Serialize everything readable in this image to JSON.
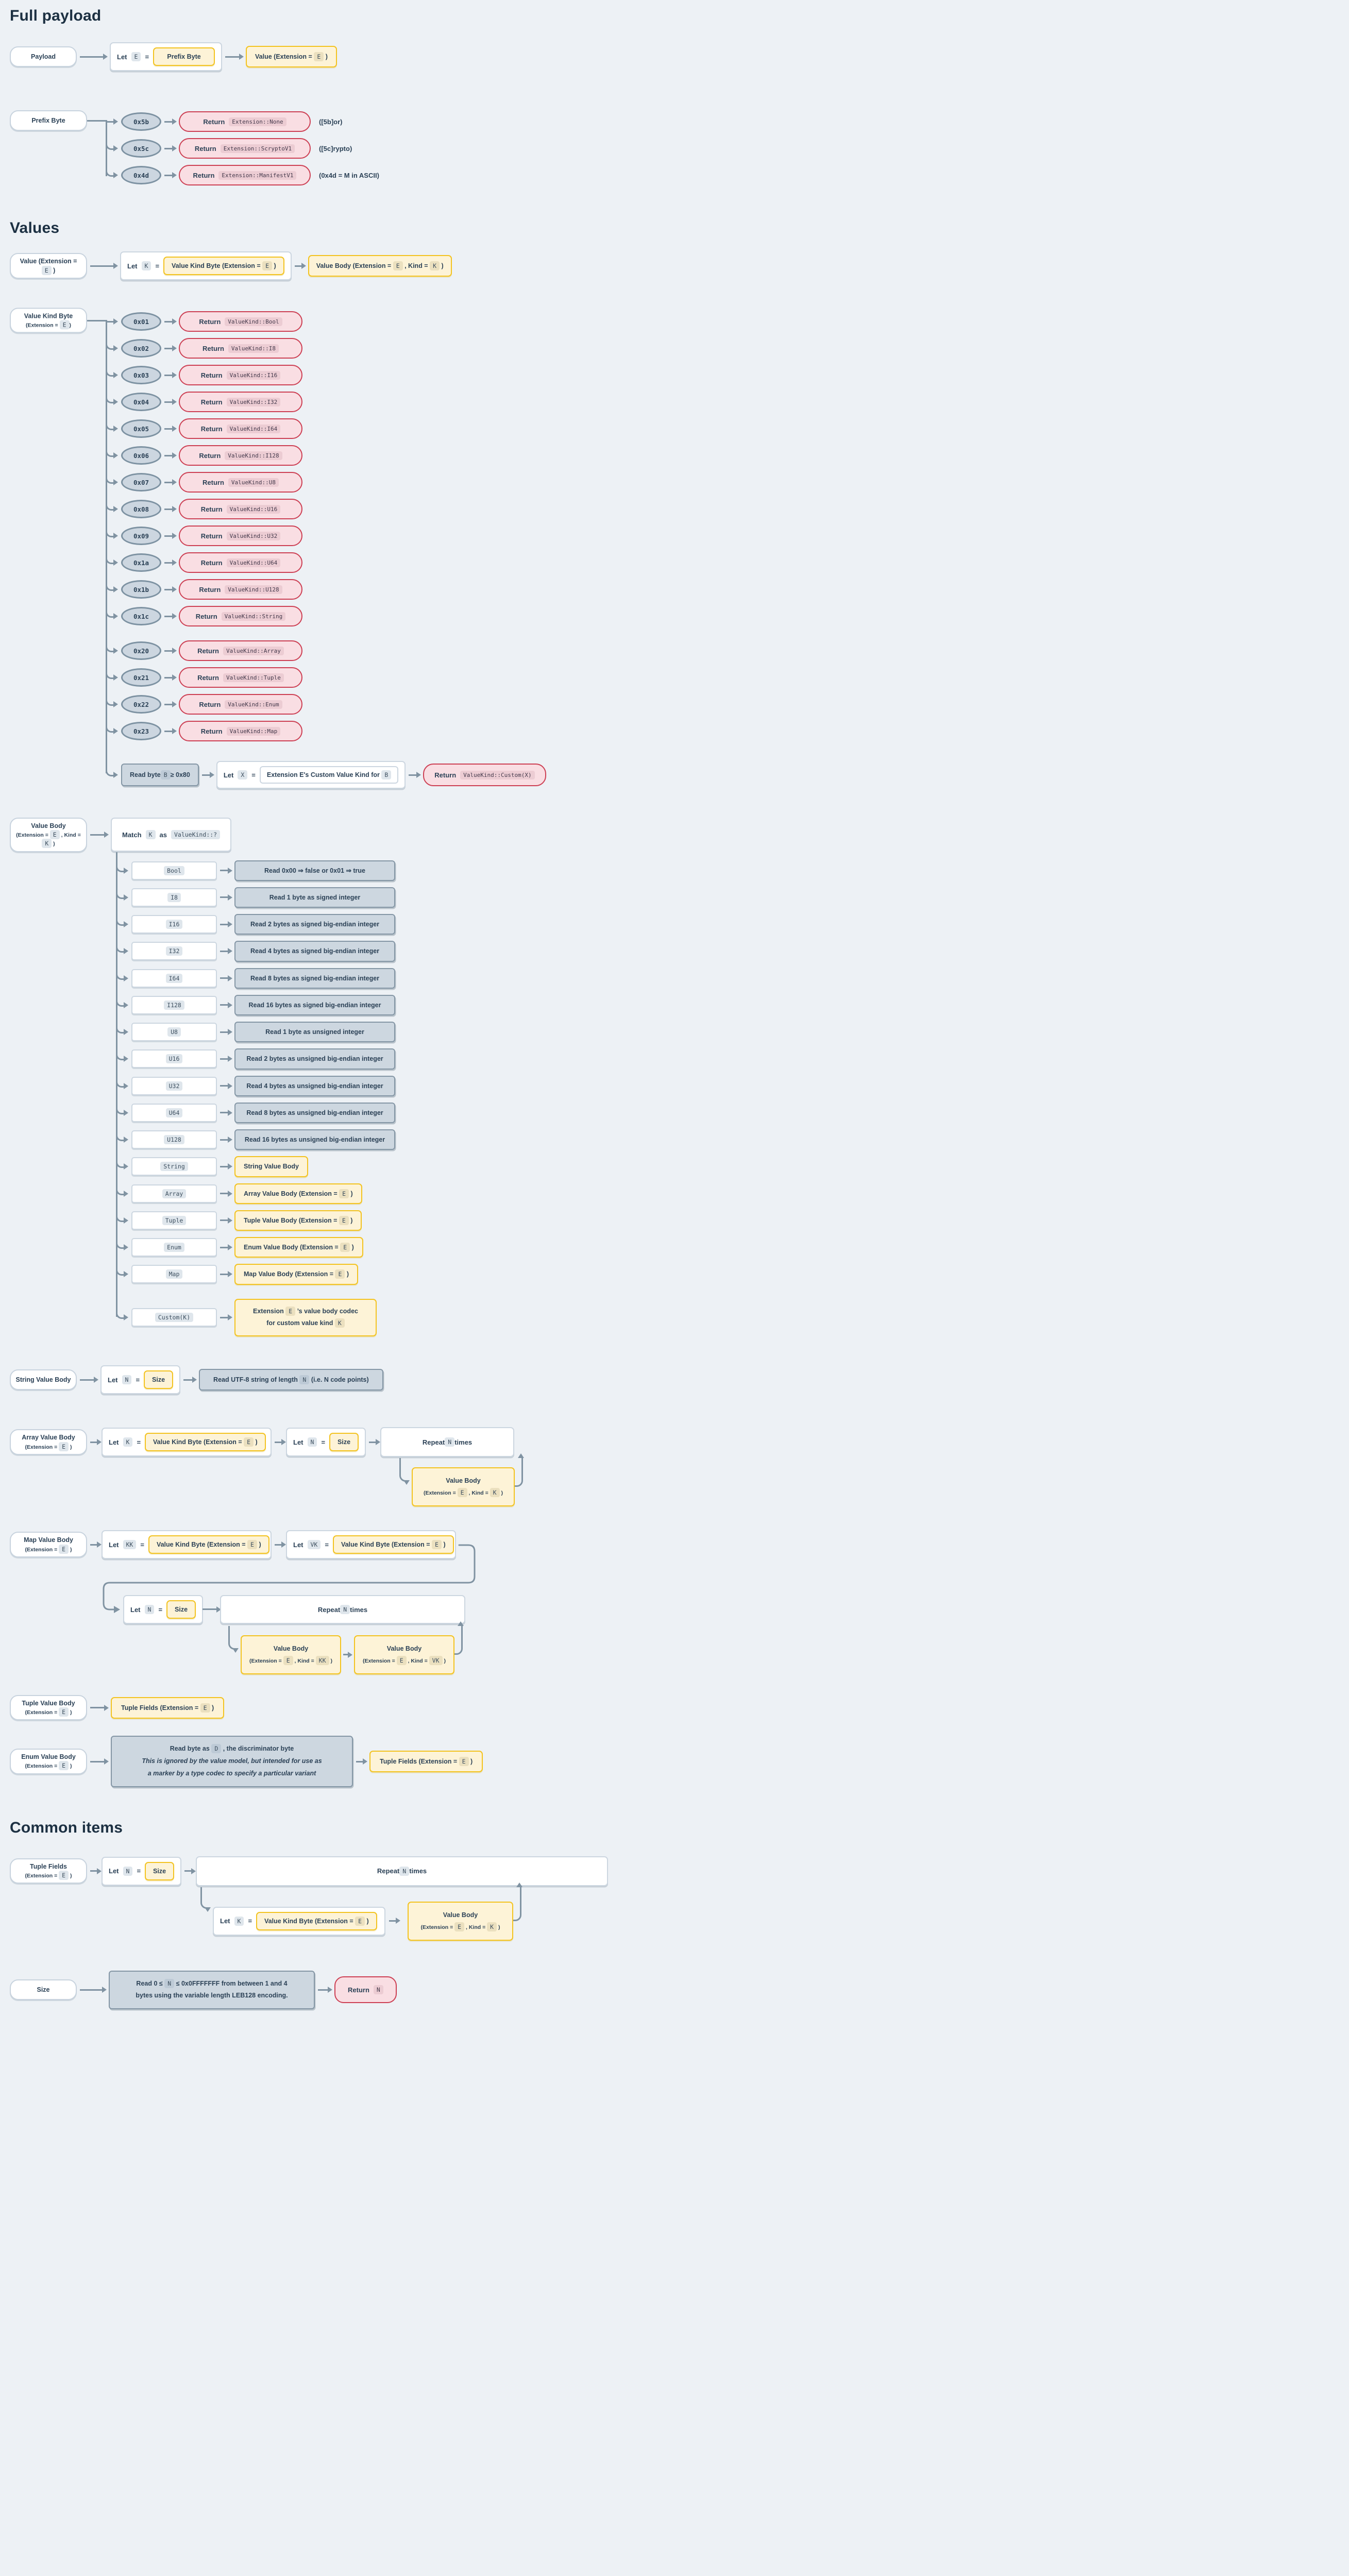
{
  "colors": {
    "background": "#edf1f5",
    "heading": "#1c3042",
    "text": "#2b4156",
    "line": "#8093a2",
    "yellow_border": "#f3c320",
    "yellow_fill": "#fdf3d7",
    "pink_border": "#cd4054",
    "pink_fill": "#f9dee3",
    "gray_box_fill": "#cdd7e0",
    "chip_gray": "#dfe6ec",
    "chip_tan": "#ebe0bf",
    "chip_pink": "#ecccd3",
    "node_border": "#c8d3de"
  },
  "headings": {
    "full_payload": "Full payload",
    "values": "Values",
    "common_items": "Common items"
  },
  "full_payload": {
    "pill": "Payload",
    "let_label": "Let",
    "let_var": "E",
    "eq": "=",
    "prefix_byte_box": "Prefix Byte",
    "value_box": [
      {
        "t": "Value (Extension = "
      },
      {
        "v": "E"
      },
      {
        "t": " )"
      }
    ]
  },
  "prefix_byte": {
    "pill": "Prefix Byte",
    "branches": [
      {
        "byte": "0x5b",
        "result": [
          {
            "t": "Return "
          },
          {
            "k": "Extension::None"
          }
        ],
        "note": "([5b]or)"
      },
      {
        "byte": "0x5c",
        "result": [
          {
            "t": "Return "
          },
          {
            "k": "Extension::ScryptoV1"
          }
        ],
        "note": "([5c]rypto)"
      },
      {
        "byte": "0x4d",
        "result": [
          {
            "t": "Return "
          },
          {
            "k": "Extension::ManifestV1"
          }
        ],
        "note": "(0x4d = M in ASCII)"
      }
    ]
  },
  "value": {
    "pill": [
      {
        "t": "Value (Extension = "
      },
      {
        "v": "E"
      },
      {
        "t": " )"
      }
    ],
    "let_label": "Let",
    "let_var": "K",
    "eq": "=",
    "kind_byte_box": [
      {
        "t": "Value Kind Byte (Extension = "
      },
      {
        "v": "E"
      },
      {
        "t": " )"
      }
    ],
    "body_box": [
      {
        "t": "Value Body (Extension = "
      },
      {
        "v": "E"
      },
      {
        "t": " , Kind = "
      },
      {
        "v": "K"
      },
      {
        "t": " )"
      }
    ]
  },
  "value_kind_byte": {
    "pill_line1": "Value Kind Byte",
    "pill_line2": [
      {
        "t": "(Extension = "
      },
      {
        "v": "E"
      },
      {
        "t": ")"
      }
    ],
    "branches": [
      {
        "byte": "0x01",
        "result": [
          {
            "t": "Return "
          },
          {
            "k": "ValueKind::Bool"
          }
        ]
      },
      {
        "byte": "0x02",
        "result": [
          {
            "t": "Return "
          },
          {
            "k": "ValueKind::I8"
          }
        ]
      },
      {
        "byte": "0x03",
        "result": [
          {
            "t": "Return "
          },
          {
            "k": "ValueKind::I16"
          }
        ]
      },
      {
        "byte": "0x04",
        "result": [
          {
            "t": "Return "
          },
          {
            "k": "ValueKind::I32"
          }
        ]
      },
      {
        "byte": "0x05",
        "result": [
          {
            "t": "Return "
          },
          {
            "k": "ValueKind::I64"
          }
        ]
      },
      {
        "byte": "0x06",
        "result": [
          {
            "t": "Return "
          },
          {
            "k": "ValueKind::I128"
          }
        ]
      },
      {
        "byte": "0x07",
        "result": [
          {
            "t": "Return "
          },
          {
            "k": "ValueKind::U8"
          }
        ]
      },
      {
        "byte": "0x08",
        "result": [
          {
            "t": "Return "
          },
          {
            "k": "ValueKind::U16"
          }
        ]
      },
      {
        "byte": "0x09",
        "result": [
          {
            "t": "Return "
          },
          {
            "k": "ValueKind::U32"
          }
        ]
      },
      {
        "byte": "0x1a",
        "result": [
          {
            "t": "Return "
          },
          {
            "k": "ValueKind::U64"
          }
        ]
      },
      {
        "byte": "0x1b",
        "result": [
          {
            "t": "Return "
          },
          {
            "k": "ValueKind::U128"
          }
        ]
      },
      {
        "byte": "0x1c",
        "result": [
          {
            "t": "Return "
          },
          {
            "k": "ValueKind::String"
          }
        ]
      },
      {
        "byte": "0x20",
        "gap": true,
        "result": [
          {
            "t": "Return "
          },
          {
            "k": "ValueKind::Array"
          }
        ]
      },
      {
        "byte": "0x21",
        "result": [
          {
            "t": "Return "
          },
          {
            "k": "ValueKind::Tuple"
          }
        ]
      },
      {
        "byte": "0x22",
        "result": [
          {
            "t": "Return "
          },
          {
            "k": "ValueKind::Enum"
          }
        ]
      },
      {
        "byte": "0x23",
        "result": [
          {
            "t": "Return "
          },
          {
            "k": "ValueKind::Map"
          }
        ]
      }
    ],
    "custom": {
      "read_box": [
        {
          "t": "Read byte "
        },
        {
          "v": "B"
        },
        {
          "t": " ≥ 0x80"
        }
      ],
      "let_label": "Let",
      "let_var": "X",
      "eq": "=",
      "inner_box": [
        {
          "t": "Extension E's Custom Value Kind for "
        },
        {
          "v": "B"
        }
      ],
      "result": [
        {
          "t": "Return "
        },
        {
          "k": "ValueKind::Custom(X)"
        }
      ]
    }
  },
  "value_body": {
    "pill_line1": "Value Body",
    "pill_line2": [
      {
        "t": "(Extension = "
      },
      {
        "v": "E"
      },
      {
        "t": " , Kind = "
      },
      {
        "v": "K"
      },
      {
        "t": " )"
      }
    ],
    "match_box": [
      {
        "t": "Match "
      },
      {
        "v": "K"
      },
      {
        "t": " as "
      },
      {
        "k": "ValueKind::?"
      }
    ],
    "branches": [
      {
        "label": "Bool",
        "type": "gray",
        "result": [
          {
            "t": "Read 0x00 ⇒ false or 0x01 ⇒ true"
          }
        ]
      },
      {
        "label": "I8",
        "type": "gray",
        "result": [
          {
            "t": "Read 1 byte as signed integer"
          }
        ]
      },
      {
        "label": "I16",
        "type": "gray",
        "result": [
          {
            "t": "Read 2 bytes as signed big-endian integer"
          }
        ]
      },
      {
        "label": "I32",
        "type": "gray",
        "result": [
          {
            "t": "Read 4 bytes as signed big-endian integer"
          }
        ]
      },
      {
        "label": "I64",
        "type": "gray",
        "result": [
          {
            "t": "Read 8 bytes as signed big-endian integer"
          }
        ]
      },
      {
        "label": "I128",
        "type": "gray",
        "result": [
          {
            "t": "Read 16 bytes as signed big-endian integer"
          }
        ]
      },
      {
        "label": "U8",
        "type": "gray",
        "result": [
          {
            "t": "Read 1 byte as unsigned integer"
          }
        ]
      },
      {
        "label": "U16",
        "type": "gray",
        "result": [
          {
            "t": "Read 2 bytes as unsigned big-endian integer"
          }
        ]
      },
      {
        "label": "U32",
        "type": "gray",
        "result": [
          {
            "t": "Read 4 bytes as unsigned big-endian integer"
          }
        ]
      },
      {
        "label": "U64",
        "type": "gray",
        "result": [
          {
            "t": "Read 8 bytes as unsigned big-endian integer"
          }
        ]
      },
      {
        "label": "U128",
        "type": "gray",
        "result": [
          {
            "t": "Read 16 bytes as unsigned big-endian integer"
          }
        ]
      },
      {
        "label": "String",
        "type": "yellow",
        "result": [
          {
            "t": "String Value Body"
          }
        ]
      },
      {
        "label": "Array",
        "type": "yellow",
        "result": [
          {
            "t": "Array Value Body (Extension = "
          },
          {
            "v": "E"
          },
          {
            "t": " )"
          }
        ]
      },
      {
        "label": "Tuple",
        "type": "yellow",
        "result": [
          {
            "t": "Tuple Value Body (Extension = "
          },
          {
            "v": "E"
          },
          {
            "t": " )"
          }
        ]
      },
      {
        "label": "Enum",
        "type": "yellow",
        "result": [
          {
            "t": "Enum Value Body (Extension = "
          },
          {
            "v": "E"
          },
          {
            "t": " )"
          }
        ]
      },
      {
        "label": "Map",
        "type": "yellow",
        "result": [
          {
            "t": "Map Value Body (Extension = "
          },
          {
            "v": "E"
          },
          {
            "t": " )"
          }
        ]
      },
      {
        "label": "Custom(K)",
        "type": "yellow2",
        "gap": true,
        "result": [
          {
            "t": "Extension "
          },
          {
            "v": "E"
          },
          {
            "t": " ’s value body codec"
          },
          {
            "br": true
          },
          {
            "t": "for custom value kind "
          },
          {
            "v": "K"
          }
        ]
      }
    ]
  },
  "string_value_body": {
    "pill": "String Value Body",
    "let_label": "Let",
    "let_var": "N",
    "eq": "=",
    "size_box": "Size",
    "read_box": [
      {
        "t": "Read UTF-8 string of length "
      },
      {
        "v": "N"
      },
      {
        "t": " (i.e. N code points)"
      }
    ]
  },
  "array_value_body": {
    "pill_line1": "Array Value Body",
    "pill_line2": [
      {
        "t": "(Extension = "
      },
      {
        "v": "E"
      },
      {
        "t": " )"
      }
    ],
    "let_label": "Let",
    "eq": "=",
    "let_k": "K",
    "let_n": "N",
    "kind_byte_box": [
      {
        "t": "Value Kind Byte (Extension = "
      },
      {
        "v": "E"
      },
      {
        "t": " )"
      }
    ],
    "size_box": "Size",
    "repeat_box": [
      {
        "t": "Repeat "
      },
      {
        "v": "N"
      },
      {
        "t": " times"
      }
    ],
    "loop_line1": "Value Body",
    "loop_line2": [
      {
        "t": "(Extension = "
      },
      {
        "v": "E"
      },
      {
        "t": " , Kind = "
      },
      {
        "v": "K"
      },
      {
        "t": " )"
      }
    ]
  },
  "map_value_body": {
    "pill_line1": "Map Value Body",
    "pill_line2": [
      {
        "t": "(Extension = "
      },
      {
        "v": "E"
      },
      {
        "t": " )"
      }
    ],
    "let_label": "Let",
    "eq": "=",
    "let_kk": "KK",
    "let_vk": "VK",
    "let_n": "N",
    "kind_byte_box": [
      {
        "t": "Value Kind Byte (Extension = "
      },
      {
        "v": "E"
      },
      {
        "t": " )"
      }
    ],
    "size_box": "Size",
    "repeat_box": [
      {
        "t": "Repeat "
      },
      {
        "v": "N"
      },
      {
        "t": " times"
      }
    ],
    "loop_key_line1": "Value Body",
    "loop_key_line2": [
      {
        "t": "(Extension = "
      },
      {
        "v": "E"
      },
      {
        "t": " , Kind = "
      },
      {
        "v": "KK"
      },
      {
        "t": " )"
      }
    ],
    "loop_val_line1": "Value Body",
    "loop_val_line2": [
      {
        "t": "(Extension = "
      },
      {
        "v": "E"
      },
      {
        "t": " , Kind = "
      },
      {
        "v": "VK"
      },
      {
        "t": " )"
      }
    ]
  },
  "tuple_value_body": {
    "pill_line1": "Tuple Value Body",
    "pill_line2": [
      {
        "t": "(Extension = "
      },
      {
        "v": "E"
      },
      {
        "t": " )"
      }
    ],
    "fields_box": [
      {
        "t": "Tuple Fields (Extension = "
      },
      {
        "v": "E"
      },
      {
        "t": " )"
      }
    ]
  },
  "enum_value_body": {
    "pill_line1": "Enum Value Body",
    "pill_line2": [
      {
        "t": "(Extension = "
      },
      {
        "v": "E"
      },
      {
        "t": " )"
      }
    ],
    "read_line1": [
      {
        "t": "Read byte as "
      },
      {
        "v": "D"
      },
      {
        "t": " , the discriminator byte"
      }
    ],
    "read_line2": "This is ignored by the value model, but intended for use as",
    "read_line3": "a marker by a type codec to specify a particular variant",
    "fields_box": [
      {
        "t": "Tuple Fields (Extension = "
      },
      {
        "v": "E"
      },
      {
        "t": " )"
      }
    ]
  },
  "tuple_fields": {
    "pill_line1": "Tuple Fields",
    "pill_line2": [
      {
        "t": "(Extension = "
      },
      {
        "v": "E"
      },
      {
        "t": " )"
      }
    ],
    "let_label": "Let",
    "eq": "=",
    "let_n": "N",
    "let_k": "K",
    "size_box": "Size",
    "repeat_box": [
      {
        "t": "Repeat "
      },
      {
        "v": "N"
      },
      {
        "t": " times"
      }
    ],
    "kind_byte_box": [
      {
        "t": "Value Kind Byte (Extension = "
      },
      {
        "v": "E"
      },
      {
        "t": " )"
      }
    ],
    "loop_line1": "Value Body",
    "loop_line2": [
      {
        "t": "(Extension = "
      },
      {
        "v": "E"
      },
      {
        "t": " , Kind = "
      },
      {
        "v": "K"
      },
      {
        "t": " )"
      }
    ]
  },
  "size": {
    "pill": "Size",
    "read_line1": [
      {
        "t": "Read 0 ≤ "
      },
      {
        "v": "N"
      },
      {
        "t": " ≤ 0x0FFFFFFF from between 1 and 4"
      }
    ],
    "read_line2": "bytes using the variable length LEB128 encoding.",
    "result": [
      {
        "t": "Return "
      },
      {
        "v": "N"
      }
    ]
  }
}
